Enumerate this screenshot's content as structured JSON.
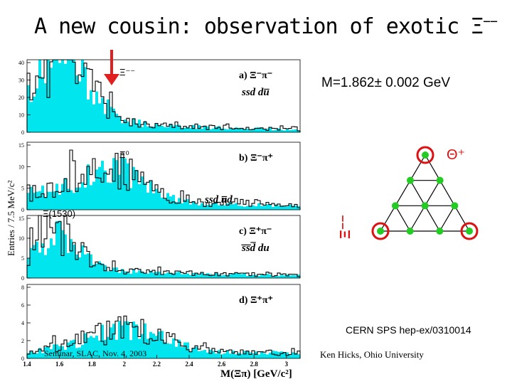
{
  "slide": {
    "title": "A new cousin: observation of exotic Ξ",
    "title_superscript": "−−",
    "mass": "M=1.862± 0.002 GeV",
    "cern_ref": "CERN SPS hep-ex/0310014",
    "author": "Ken Hicks, Ohio University",
    "seminar": "Seminar, SLAC, Nov. 4, 2003",
    "arrow_color": "#e02020"
  },
  "plots": {
    "y_axis_label": "Entries / 7.5 MeV/c²",
    "x_axis_label": "M(Ξπ) [GeV/c²]",
    "x_ticks": [
      "1.4",
      "1.6",
      "1.8",
      "2",
      "2.2",
      "2.4",
      "2.6",
      "2.8",
      "3"
    ],
    "fill_color": "#00e5ee",
    "panels": [
      {
        "id": "a",
        "label": "a) Ξ⁻π⁻",
        "quark": "ssd du̅",
        "marker": "Ξ⁻⁻",
        "y_ticks": [
          "0",
          "10",
          "20",
          "30",
          "40"
        ],
        "ymax": 40
      },
      {
        "id": "b",
        "label": "b) Ξ⁻π⁺",
        "quark": "ssd u̅d",
        "marker": "Ξ⁰",
        "y_ticks": [
          "0",
          "5",
          "10",
          "15"
        ],
        "ymax": 15
      },
      {
        "id": "c",
        "label": "c) Ξ⁺π⁻",
        "quark": "s̅s̅d̅ du",
        "marker": "Ξ(1530)",
        "y_ticks": [
          "0",
          "5",
          "10",
          "15"
        ],
        "ymax": 15
      },
      {
        "id": "d",
        "label": "d) Ξ⁺π⁺",
        "quark": "",
        "marker": "",
        "y_ticks": [
          "0",
          "2",
          "4",
          "6",
          "8"
        ],
        "ymax": 8
      }
    ]
  },
  "triangle": {
    "top_label": "Θ⁺",
    "left_label": "Ξ⁻⁻",
    "node_color": "#22cc22",
    "ring_color": "#dd1111"
  }
}
